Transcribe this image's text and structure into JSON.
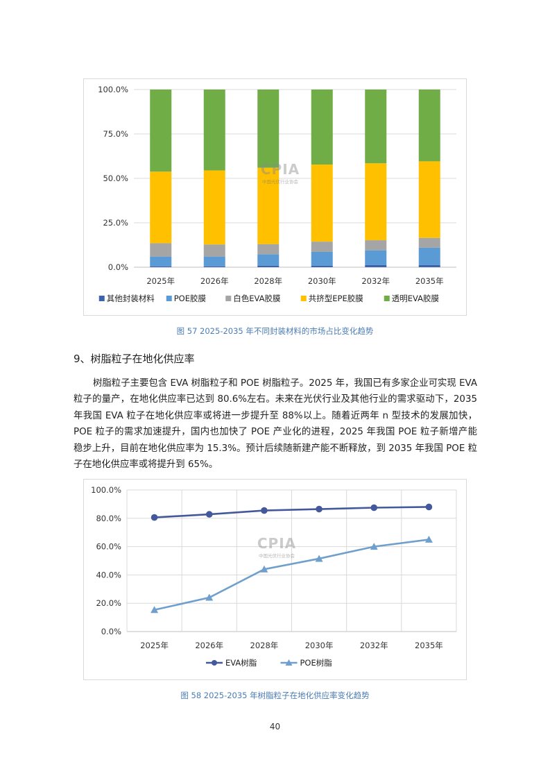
{
  "charts": [
    {
      "type": "bar",
      "stacked": true,
      "categories": [
        "2025年",
        "2026年",
        "2028年",
        "2030年",
        "2032年",
        "2035年"
      ],
      "series": [
        {
          "name": "其他封装材料",
          "color": "#3b64ad",
          "values": [
            0.5,
            0.5,
            0.8,
            0.8,
            1.2,
            1.2
          ]
        },
        {
          "name": "POE胶膜",
          "color": "#5b9bd5",
          "values": [
            5.5,
            5.5,
            6.5,
            7.8,
            8.3,
            9.8
          ]
        },
        {
          "name": "白色EVA胶膜",
          "color": "#a5a5a5",
          "values": [
            7.5,
            6.8,
            5.7,
            5.8,
            5.7,
            5.5
          ]
        },
        {
          "name": "共挤型EPE胶膜",
          "color": "#ffc000",
          "values": [
            40.3,
            41.7,
            43.0,
            43.4,
            43.3,
            43.1
          ]
        },
        {
          "name": "透明EVA胶膜",
          "color": "#70ad47",
          "values": [
            46.2,
            45.5,
            44.0,
            42.2,
            41.5,
            40.4
          ]
        }
      ],
      "ylim": [
        0,
        100
      ],
      "yticks": [
        "0.0%",
        "25.0%",
        "50.0%",
        "75.0%",
        "100.0%"
      ],
      "legend_position": "bottom",
      "grid": true
    },
    {
      "type": "line",
      "categories": [
        "2025年",
        "2026年",
        "2028年",
        "2030年",
        "2032年",
        "2035年"
      ],
      "series": [
        {
          "name": "EVA树脂",
          "color": "#44589c",
          "marker": "circle",
          "values": [
            80.6,
            82.8,
            85.5,
            86.5,
            87.5,
            88.0
          ]
        },
        {
          "name": "POE树脂",
          "color": "#6f9fcc",
          "marker": "triangle",
          "values": [
            15.3,
            24.0,
            44.0,
            51.5,
            60.0,
            65.0
          ]
        }
      ],
      "ylim": [
        0,
        100
      ],
      "yticks": [
        "0.0%",
        "20.0%",
        "40.0%",
        "60.0%",
        "80.0%",
        "100.0%"
      ],
      "legend_position": "bottom",
      "grid": true
    }
  ],
  "watermark": {
    "logo": "CPIA",
    "sub": "中国光伏行业协会"
  },
  "caption1": "图 57    2025-2035 年不同封装材料的市场占比变化趋势",
  "heading": "9、树脂粒子在地化供应率",
  "paragraph": "树脂粒子主要包含 EVA 树脂粒子和 POE 树脂粒子。2025 年，我国已有多家企业可实现 EVA 粒子的量产，在地化供应率已达到 80.6%左右。未来在光伏行业及其他行业的需求驱动下，2035 年我国 EVA 粒子在地化供应率或将进一步提升至 88%以上。随着近两年 n 型技术的发展加快，POE 粒子的需求加速提升，国内也加快了 POE 产业化的进程，2025 年我国 POE 粒子新增产能稳步上升，目前在地化供应率为 15.3%。预计后续随新建产能不断释放，到 2035 年我国 POE 粒子在地化供应率或将提升到 65%。",
  "caption2": "图 58    2025-2035 年树脂粒子在地化供应率变化趋势",
  "page_number": "40"
}
